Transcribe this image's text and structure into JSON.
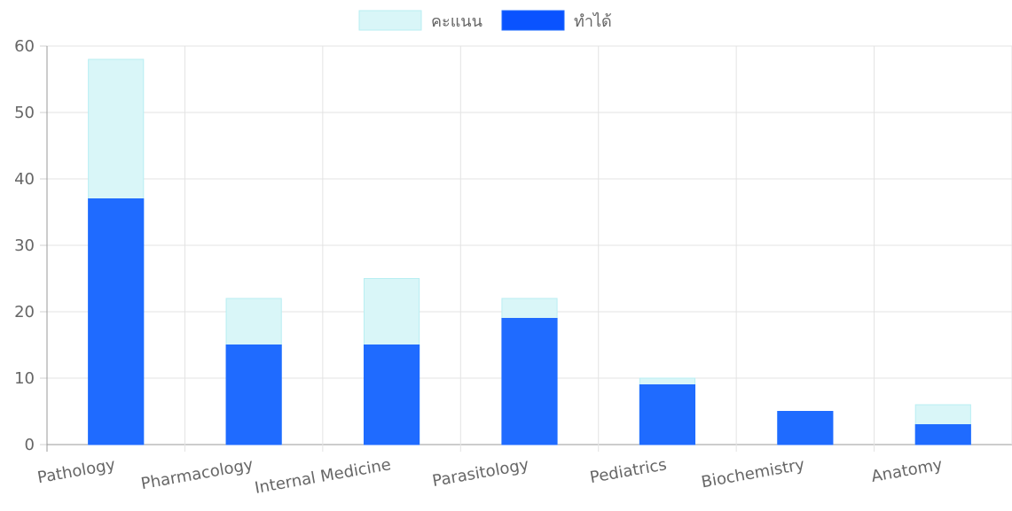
{
  "chart_data": {
    "type": "bar",
    "categories": [
      "Pathology",
      "Pharmacology",
      "Internal Medicine",
      "Parasitology",
      "Pediatrics",
      "Biochemistry",
      "Anatomy"
    ],
    "series": [
      {
        "name": "คะแนน",
        "values": [
          58,
          22,
          25,
          22,
          10,
          5,
          6
        ],
        "color": "#d9f6f8",
        "border": "#b8eef2"
      },
      {
        "name": "ทำได้",
        "values": [
          37,
          15,
          15,
          19,
          9,
          5,
          3
        ],
        "color": "#1f6bff",
        "border": "#1f6bff"
      }
    ],
    "overlap": true,
    "ylim": [
      0,
      60
    ],
    "yticks": [
      0,
      10,
      20,
      30,
      40,
      50,
      60
    ],
    "grid": true,
    "legend": "top-center",
    "xlabel": "",
    "ylabel": "",
    "legend_colors": {
      "score": "#d9f6f8",
      "achieved": "#0a53ff"
    }
  }
}
